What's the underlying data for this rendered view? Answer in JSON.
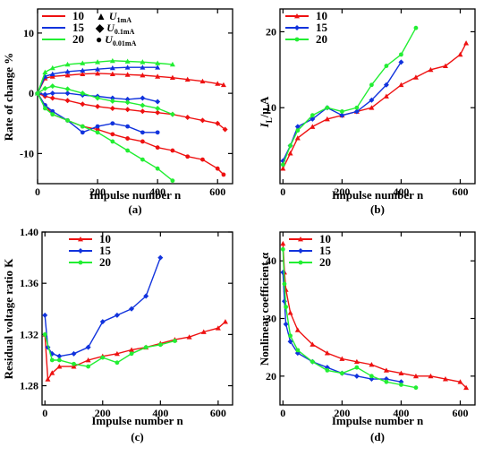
{
  "colors": {
    "s10": "#ee1111",
    "s15": "#1133dd",
    "s20": "#22ee33",
    "axis": "#000000"
  },
  "chart_data": [
    {
      "type": "line",
      "panel_label": "(a)",
      "xlabel": "Impulse number n",
      "ylabel": "Rate of change %",
      "xlim": [
        0,
        650
      ],
      "ylim": [
        -15,
        14
      ],
      "xticks": [
        0,
        200,
        400,
        600
      ],
      "yticks": [
        -10,
        0,
        10
      ],
      "xtick_labels": [
        "0",
        "200",
        "400",
        "600"
      ],
      "ytick_labels": [
        "-10",
        "0",
        "10"
      ],
      "legend": {
        "placement": "top-left",
        "entries": [
          "10",
          "15",
          "20"
        ],
        "marker_entries": [
          "U1mA",
          "U0.1mA",
          "U0.01mA"
        ],
        "marker_main": [
          "U",
          "U",
          "U"
        ],
        "marker_sub": [
          "1mA",
          "0.1mA",
          "0.01mA"
        ]
      },
      "series": [
        {
          "name": "10",
          "quantity": "U1mA",
          "marker": "triangle",
          "x": [
            0,
            25,
            50,
            100,
            150,
            200,
            250,
            300,
            350,
            400,
            450,
            500,
            550,
            600,
            620
          ],
          "y": [
            0,
            2.5,
            2.8,
            3,
            3.2,
            3.3,
            3.2,
            3.1,
            3,
            2.8,
            2.6,
            2.3,
            2,
            1.6,
            1.4
          ]
        },
        {
          "name": "15",
          "quantity": "U1mA",
          "marker": "triangle",
          "x": [
            0,
            25,
            50,
            100,
            150,
            200,
            250,
            300,
            350,
            400
          ],
          "y": [
            0,
            2.8,
            3.2,
            3.6,
            3.8,
            4,
            4.2,
            4.3,
            4.3,
            4.3
          ]
        },
        {
          "name": "20",
          "quantity": "U1mA",
          "marker": "triangle",
          "x": [
            0,
            25,
            50,
            100,
            150,
            200,
            250,
            300,
            350,
            400,
            450
          ],
          "y": [
            0,
            3.5,
            4.2,
            4.8,
            5,
            5.2,
            5.4,
            5.3,
            5.2,
            5,
            4.8
          ]
        },
        {
          "name": "10",
          "quantity": "U0.1mA",
          "marker": "diamond",
          "x": [
            0,
            25,
            50,
            100,
            150,
            200,
            250,
            300,
            350,
            400,
            450,
            500,
            550,
            600,
            625
          ],
          "y": [
            0,
            -0.5,
            -0.8,
            -1.2,
            -1.8,
            -2.2,
            -2.5,
            -2.7,
            -3,
            -3.2,
            -3.5,
            -4,
            -4.5,
            -5,
            -6
          ]
        },
        {
          "name": "15",
          "quantity": "U0.1mA",
          "marker": "diamond",
          "x": [
            0,
            25,
            50,
            100,
            150,
            200,
            250,
            300,
            350,
            400
          ],
          "y": [
            0,
            -0.2,
            0,
            0,
            -0.3,
            -0.5,
            -0.8,
            -1,
            -0.8,
            -1.4
          ]
        },
        {
          "name": "20",
          "quantity": "U0.1mA",
          "marker": "diamond",
          "x": [
            0,
            25,
            50,
            100,
            150,
            200,
            250,
            300,
            350,
            400,
            450
          ],
          "y": [
            0,
            0.8,
            1.2,
            0.7,
            0,
            -0.8,
            -1.3,
            -1.5,
            -2,
            -2.5,
            -3.5
          ]
        },
        {
          "name": "10",
          "quantity": "U0.01mA",
          "marker": "circle",
          "x": [
            0,
            25,
            50,
            100,
            150,
            200,
            250,
            300,
            350,
            400,
            450,
            500,
            550,
            600,
            620
          ],
          "y": [
            0,
            -2,
            -3.5,
            -4.5,
            -5.5,
            -6,
            -6.8,
            -7.5,
            -8,
            -9,
            -9.5,
            -10.5,
            -11,
            -12.5,
            -13.5
          ]
        },
        {
          "name": "15",
          "quantity": "U0.01mA",
          "marker": "circle",
          "x": [
            0,
            25,
            50,
            100,
            150,
            200,
            250,
            300,
            350,
            400
          ],
          "y": [
            0,
            -2,
            -3,
            -4.5,
            -6.5,
            -5.5,
            -5,
            -5.5,
            -6.5,
            -6.5
          ]
        },
        {
          "name": "20",
          "quantity": "U0.01mA",
          "marker": "circle",
          "x": [
            0,
            25,
            50,
            100,
            150,
            200,
            250,
            300,
            350,
            400,
            450
          ],
          "y": [
            0,
            -2.5,
            -3.5,
            -4.5,
            -5.5,
            -6.5,
            -8,
            -9.5,
            -11,
            -12.5,
            -14.5
          ]
        }
      ]
    },
    {
      "type": "line",
      "panel_label": "(b)",
      "xlabel": "Impulse number n",
      "ylabel": "IL/μA",
      "ylabel_main": "I",
      "ylabel_sub": "L",
      "ylabel_tail": "/μ A",
      "xlim": [
        -10,
        650
      ],
      "ylim": [
        0,
        23
      ],
      "xticks": [
        0,
        200,
        400,
        600
      ],
      "yticks": [
        10,
        20
      ],
      "xtick_labels": [
        "0",
        "200",
        "400",
        "600"
      ],
      "ytick_labels": [
        "10",
        "20"
      ],
      "legend": {
        "placement": "top-left",
        "entries": [
          "10",
          "15",
          "20"
        ]
      },
      "series": [
        {
          "name": "10",
          "marker": "triangle",
          "x": [
            0,
            25,
            50,
            100,
            150,
            200,
            250,
            300,
            350,
            400,
            450,
            500,
            550,
            600,
            620
          ],
          "y": [
            2,
            4,
            6,
            7.5,
            8.5,
            9,
            9.5,
            10,
            11.5,
            13,
            14,
            15,
            15.5,
            17,
            18.5
          ]
        },
        {
          "name": "15",
          "marker": "diamond",
          "x": [
            0,
            25,
            50,
            100,
            150,
            200,
            250,
            300,
            350,
            400
          ],
          "y": [
            3,
            5,
            7.5,
            8.5,
            10,
            9,
            9.5,
            11,
            13,
            16
          ]
        },
        {
          "name": "20",
          "marker": "circle",
          "x": [
            0,
            25,
            50,
            100,
            150,
            200,
            250,
            300,
            350,
            400,
            450
          ],
          "y": [
            2.5,
            5,
            7,
            9,
            10,
            9.5,
            10,
            13,
            15.5,
            17,
            20.5
          ]
        }
      ]
    },
    {
      "type": "line",
      "panel_label": "(c)",
      "xlabel": "Impulse number n",
      "ylabel": "Residual voltage ratio K",
      "xlim": [
        -10,
        650
      ],
      "ylim": [
        1.265,
        1.4
      ],
      "xticks": [
        0,
        200,
        400,
        600
      ],
      "yticks": [
        1.28,
        1.32,
        1.36,
        1.4
      ],
      "xtick_labels": [
        "0",
        "200",
        "400",
        "600"
      ],
      "ytick_labels": [
        "1.28",
        "1.32",
        "1.36",
        "1.40"
      ],
      "legend": {
        "placement": "top-center",
        "entries": [
          "10",
          "15",
          "20"
        ]
      },
      "series": [
        {
          "name": "10",
          "marker": "triangle",
          "x": [
            0,
            10,
            25,
            50,
            100,
            150,
            200,
            250,
            300,
            350,
            400,
            450,
            500,
            550,
            600,
            625
          ],
          "y": [
            1.32,
            1.285,
            1.29,
            1.295,
            1.295,
            1.3,
            1.303,
            1.305,
            1.308,
            1.31,
            1.313,
            1.316,
            1.318,
            1.322,
            1.325,
            1.33
          ]
        },
        {
          "name": "15",
          "marker": "diamond",
          "x": [
            0,
            10,
            25,
            50,
            100,
            150,
            200,
            250,
            300,
            350,
            400
          ],
          "y": [
            1.335,
            1.31,
            1.305,
            1.303,
            1.305,
            1.31,
            1.33,
            1.335,
            1.34,
            1.35,
            1.38
          ]
        },
        {
          "name": "20",
          "marker": "circle",
          "x": [
            0,
            25,
            50,
            100,
            150,
            200,
            250,
            300,
            350,
            400,
            450
          ],
          "y": [
            1.32,
            1.3,
            1.3,
            1.297,
            1.295,
            1.302,
            1.298,
            1.305,
            1.31,
            1.312,
            1.315
          ]
        }
      ]
    },
    {
      "type": "line",
      "panel_label": "(d)",
      "xlabel": "Impulse number n",
      "ylabel": "Nonlinear coefficient α",
      "xlim": [
        -10,
        650
      ],
      "ylim": [
        15,
        45
      ],
      "xticks": [
        0,
        200,
        400,
        600
      ],
      "yticks": [
        20,
        30,
        40
      ],
      "xtick_labels": [
        "0",
        "200",
        "400",
        "600"
      ],
      "ytick_labels": [
        "20",
        "30",
        "40"
      ],
      "legend": {
        "placement": "top-center",
        "entries": [
          "10",
          "15",
          "20"
        ]
      },
      "series": [
        {
          "name": "10",
          "marker": "triangle",
          "x": [
            0,
            5,
            10,
            25,
            50,
            100,
            150,
            200,
            250,
            300,
            350,
            400,
            450,
            500,
            550,
            600,
            620
          ],
          "y": [
            43,
            38,
            35,
            31,
            28,
            25.5,
            24,
            23,
            22.5,
            22,
            21,
            20.5,
            20,
            20,
            19.5,
            19,
            18
          ]
        },
        {
          "name": "15",
          "marker": "diamond",
          "x": [
            0,
            5,
            10,
            25,
            50,
            100,
            150,
            200,
            250,
            300,
            350,
            400
          ],
          "y": [
            38,
            33,
            29,
            26,
            24,
            22.5,
            21.5,
            20.5,
            20,
            19.5,
            19.5,
            19
          ]
        },
        {
          "name": "20",
          "marker": "circle",
          "x": [
            0,
            5,
            10,
            25,
            50,
            100,
            150,
            200,
            250,
            300,
            350,
            400,
            450
          ],
          "y": [
            42,
            36,
            32,
            27,
            24.5,
            22.5,
            21,
            20.5,
            21.5,
            20,
            19,
            18.5,
            18
          ]
        }
      ]
    }
  ]
}
